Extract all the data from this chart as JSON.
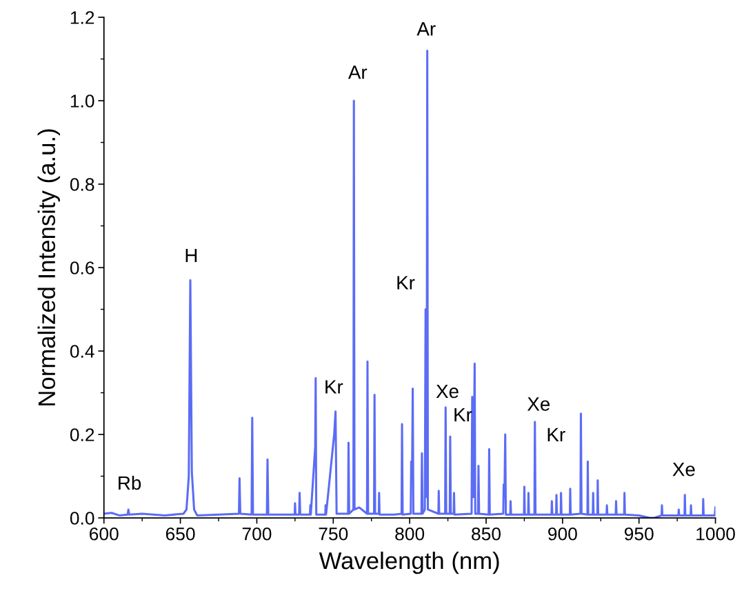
{
  "chart_data": {
    "type": "line",
    "xlabel": "Wavelength (nm)",
    "ylabel": "Normalized Intensity (a.u.)",
    "xlim": [
      600,
      1000
    ],
    "xticks": [
      600,
      650,
      700,
      750,
      800,
      850,
      900,
      950,
      1000
    ],
    "ylim": [
      0,
      1.2
    ],
    "yticks": [
      {
        "value": 0,
        "label": "0.0"
      },
      {
        "value": 0.2,
        "label": "0.2"
      },
      {
        "value": 0.4,
        "label": "0.4"
      },
      {
        "value": 0.6,
        "label": "0.6"
      },
      {
        "value": 0.8,
        "label": "0.8"
      },
      {
        "value": 1.0,
        "label": "1.0"
      },
      {
        "value": 1.2,
        "label": "1.2"
      }
    ],
    "grid": false,
    "legend": false,
    "series": [
      {
        "color": "#5b6cf5",
        "x": [
          600,
          605,
          610,
          615.5,
          616,
          616.5,
          625,
          640,
          652,
          654,
          655.5,
          656.5,
          657.5,
          659,
          661,
          675,
          688.3,
          688.7,
          689.2,
          696.6,
          697,
          697.5,
          706.6,
          707,
          707.5,
          724.8,
          725,
          725.3,
          727.7,
          728,
          728.4,
          734.8,
          735,
          735.3,
          738.2,
          738.5,
          738.9,
          744.8,
          745,
          745.3,
          750.6,
          751.5,
          752.2,
          759.7,
          760,
          760.4,
          763.2,
          763.5,
          763.9,
          767,
          772.1,
          772.4,
          772.8,
          776.7,
          777,
          777.4,
          779.8,
          780,
          780.3,
          790,
          794.7,
          795,
          795.4,
          800.7,
          801,
          801.6,
          802,
          802.4,
          807.7,
          808,
          808.4,
          809.9,
          810.4,
          811.1,
          811.5,
          811.9,
          818.8,
          819,
          819.3,
          823.2,
          823.5,
          823.9,
          826.2,
          826.5,
          826.9,
          828.8,
          829,
          829.3,
          840.5,
          840.9,
          841.7,
          842.5,
          842.9,
          844.7,
          845,
          845.4,
          851.7,
          852,
          852.4,
          861.2,
          861.5,
          862,
          862.5,
          862.9,
          865.8,
          866,
          866.3,
          874.8,
          875,
          875.3,
          877.5,
          877.7,
          878,
          881.6,
          881.9,
          882.3,
          892.8,
          893,
          893.3,
          895.8,
          896,
          896.3,
          898.8,
          899,
          899.3,
          904.8,
          905,
          905.3,
          911.7,
          912,
          912.4,
          916.3,
          916.5,
          916.8,
          919.8,
          920,
          920.3,
          922.8,
          923,
          923.3,
          928.8,
          929,
          929.3,
          934.8,
          935,
          935.3,
          940.3,
          940.5,
          940.8,
          950,
          957,
          960,
          964.8,
          965,
          965.3,
          975.8,
          976,
          976.3,
          979.8,
          980,
          980.3,
          983.8,
          984,
          984.3,
          991.8,
          992,
          992.3,
          999.6,
          1000
        ],
        "values": [
          0.01,
          0.012,
          0.006,
          0.008,
          0.02,
          0.008,
          0.01,
          0.006,
          0.01,
          0.02,
          0.1,
          0.57,
          0.11,
          0.02,
          0.006,
          0.008,
          0.01,
          0.095,
          0.01,
          0.008,
          0.24,
          0.008,
          0.008,
          0.14,
          0.008,
          0.008,
          0.035,
          0.008,
          0.008,
          0.06,
          0.008,
          0.008,
          0.03,
          0.008,
          0.17,
          0.335,
          0.008,
          0.008,
          0.03,
          0.008,
          0.2,
          0.255,
          0.01,
          0.01,
          0.18,
          0.01,
          0.02,
          1.0,
          0.02,
          0.025,
          0.01,
          0.375,
          0.01,
          0.01,
          0.295,
          0.01,
          0.01,
          0.06,
          0.008,
          0.008,
          0.01,
          0.225,
          0.008,
          0.01,
          0.135,
          0.12,
          0.31,
          0.01,
          0.01,
          0.155,
          0.01,
          0.02,
          0.5,
          0.05,
          1.12,
          0.02,
          0.01,
          0.065,
          0.01,
          0.01,
          0.265,
          0.01,
          0.01,
          0.195,
          0.01,
          0.01,
          0.06,
          0.008,
          0.01,
          0.29,
          0.05,
          0.37,
          0.01,
          0.01,
          0.125,
          0.01,
          0.008,
          0.165,
          0.008,
          0.01,
          0.08,
          0.05,
          0.2,
          0.008,
          0.008,
          0.04,
          0.008,
          0.008,
          0.075,
          0.008,
          0.008,
          0.06,
          0.008,
          0.008,
          0.23,
          0.008,
          0.008,
          0.04,
          0.008,
          0.008,
          0.055,
          0.008,
          0.008,
          0.06,
          0.008,
          0.008,
          0.07,
          0.008,
          0.01,
          0.25,
          0.01,
          0.008,
          0.135,
          0.008,
          0.008,
          0.06,
          0.008,
          0.008,
          0.09,
          0.008,
          0.008,
          0.03,
          0.008,
          0.008,
          0.04,
          0.008,
          0.008,
          0.06,
          0.008,
          0.006,
          0.0,
          0.0,
          0.006,
          0.03,
          0.006,
          0.006,
          0.02,
          0.006,
          0.006,
          0.055,
          0.006,
          0.006,
          0.03,
          0.006,
          0.006,
          0.045,
          0.006,
          0.006,
          0.025
        ]
      }
    ],
    "annotations": [
      {
        "text": "Rb",
        "x": 616,
        "y": 0.02
      },
      {
        "text": "H",
        "x": 656.5,
        "y": 0.57
      },
      {
        "text": "Kr",
        "x": 751.5,
        "y": 0.255
      },
      {
        "text": "Ar",
        "x": 763.5,
        "y": 1.0
      },
      {
        "text": "Kr",
        "x": 810.4,
        "y": 0.5
      },
      {
        "text": "Ar",
        "x": 811.5,
        "y": 1.12
      },
      {
        "text": "Xe",
        "x": 823.5,
        "y": 0.265
      },
      {
        "text": "Kr",
        "x": 826.5,
        "y": 0.195
      },
      {
        "text": "Xe",
        "x": 881.9,
        "y": 0.23
      },
      {
        "text": "Kr",
        "x": 881.9,
        "y": 0.23
      },
      {
        "text": "Xe",
        "x": 980,
        "y": 0.055
      }
    ]
  }
}
